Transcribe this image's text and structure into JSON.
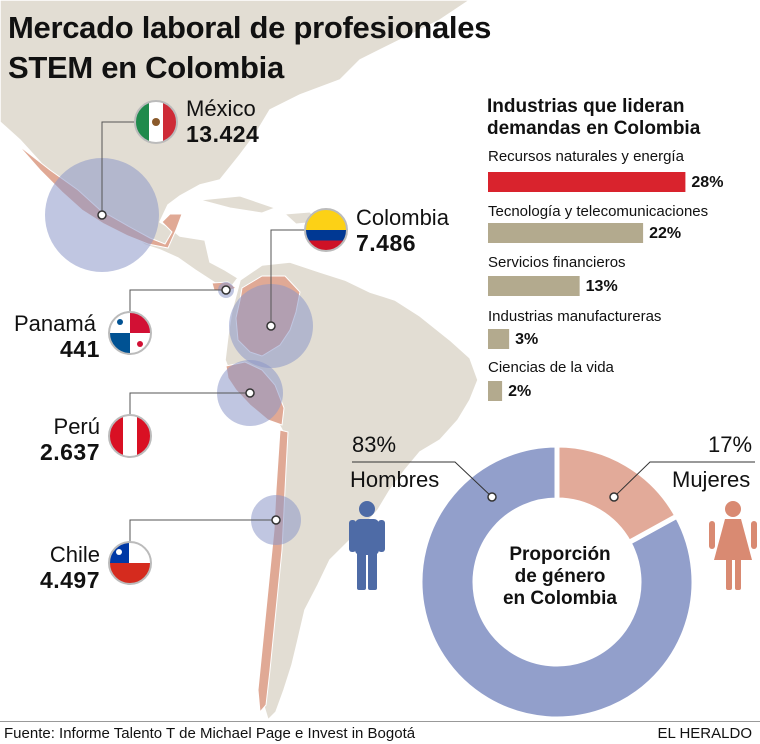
{
  "title_line1": "Mercado laboral de profesionales",
  "title_line2": "STEM en Colombia",
  "countries": [
    {
      "name": "México",
      "value": "13.424",
      "flag": "mexico-flag"
    },
    {
      "name": "Colombia",
      "value": "7.486",
      "flag": "colombia-flag"
    },
    {
      "name": "Panamá",
      "value": "441",
      "flag": "panama-flag"
    },
    {
      "name": "Perú",
      "value": "2.637",
      "flag": "peru-flag"
    },
    {
      "name": "Chile",
      "value": "4.497",
      "flag": "chile-flag"
    }
  ],
  "chart_data": [
    {
      "type": "bar",
      "title": "Industrias que lideran demandas en Colombia",
      "title_line1": "Industrias que lideran",
      "title_line2": "demandas en Colombia",
      "orientation": "horizontal",
      "categories": [
        "Recursos naturales y energía",
        "Tecnología y telecomunicaciones",
        "Servicios financieros",
        "Industrias manufactureras",
        "Ciencias de la vida"
      ],
      "values": [
        28,
        22,
        13,
        3,
        2
      ],
      "value_labels": [
        "28%",
        "22%",
        "13%",
        "3%",
        "2%"
      ],
      "unit": "%",
      "colors": [
        "#d9232d",
        "#b3aa8e",
        "#b3aa8e",
        "#b3aa8e",
        "#b3aa8e"
      ]
    },
    {
      "type": "pie",
      "title": "Proporción de género en Colombia",
      "title_lines": [
        "Proporción",
        "de género",
        "en Colombia"
      ],
      "categories": [
        "Hombres",
        "Mujeres"
      ],
      "values": [
        83,
        17
      ],
      "value_labels": [
        "83%",
        "17%"
      ],
      "colors": [
        "#929fcb",
        "#e2aa99"
      ]
    }
  ],
  "footer": {
    "source": "Fuente: Informe Talento T de Michael Page e Invest in Bogotá",
    "brand": "EL HERALDO"
  },
  "colors": {
    "map_land": "#e2ddd3",
    "map_border": "#ffffff",
    "highlight": "#e0a995",
    "bubble": "#8d97c8",
    "men_icon": "#4e6ba6",
    "women_icon": "#d98a72"
  }
}
